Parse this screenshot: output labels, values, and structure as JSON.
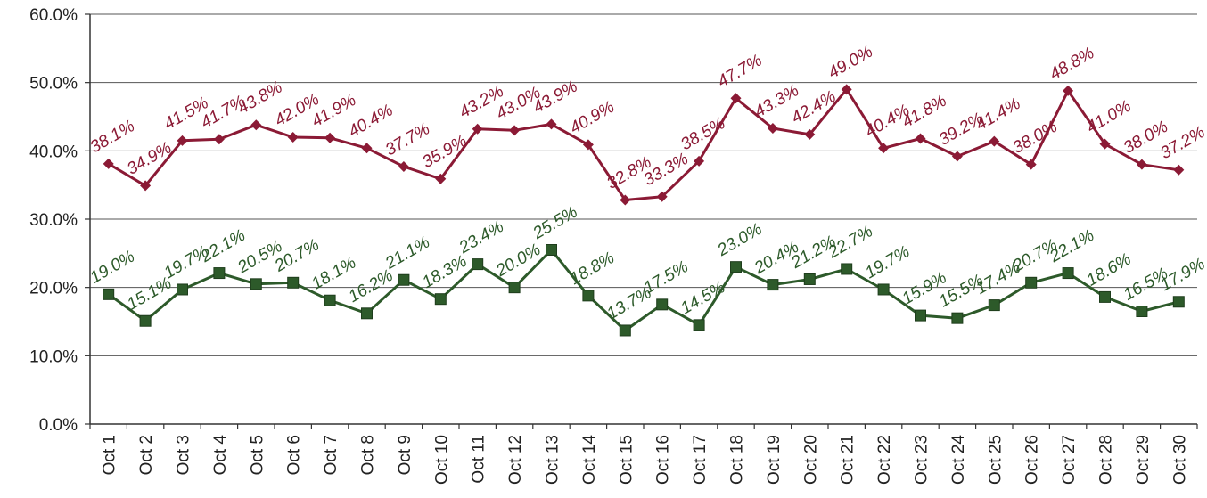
{
  "chart_data": {
    "type": "line",
    "title": "",
    "xlabel": "",
    "ylabel": "",
    "categories": [
      "Oct 1",
      "Oct 2",
      "Oct 3",
      "Oct 4",
      "Oct 5",
      "Oct 6",
      "Oct 7",
      "Oct 8",
      "Oct 9",
      "Oct 10",
      "Oct 11",
      "Oct 12",
      "Oct 13",
      "Oct 14",
      "Oct 15",
      "Oct 16",
      "Oct 17",
      "Oct 18",
      "Oct 19",
      "Oct 20",
      "Oct 21",
      "Oct 22",
      "Oct 23",
      "Oct 24",
      "Oct 25",
      "Oct 26",
      "Oct 27",
      "Oct 28",
      "Oct 29",
      "Oct 30"
    ],
    "y_ticks": [
      "0.0%",
      "10.0%",
      "20.0%",
      "30.0%",
      "40.0%",
      "50.0%",
      "60.0%"
    ],
    "ylim": [
      0,
      60
    ],
    "grid": true,
    "legend": "none",
    "series": [
      {
        "color": "#8b1a35",
        "marker": "diamond",
        "values": [
          38.1,
          34.9,
          41.5,
          41.7,
          43.8,
          42.0,
          41.9,
          40.4,
          37.7,
          35.9,
          43.2,
          43.0,
          43.9,
          40.9,
          32.8,
          33.3,
          38.5,
          47.7,
          43.3,
          42.4,
          49.0,
          40.4,
          41.8,
          39.2,
          41.4,
          38.0,
          48.8,
          41.0,
          38.0,
          37.2
        ],
        "labels": [
          "38.1%",
          "34.9%",
          "41.5%",
          "41.7%",
          "43.8%",
          "42.0%",
          "41.9%",
          "40.4%",
          "37.7%",
          "35.9%",
          "43.2%",
          "43.0%",
          "43.9%",
          "40.9%",
          "32.8%",
          "33.3%",
          "38.5%",
          "47.7%",
          "43.3%",
          "42.4%",
          "49.0%",
          "40.4%",
          "41.8%",
          "39.2%",
          "41.4%",
          "38.0%",
          "48.8%",
          "41.0%",
          "38.0%",
          "37.2%"
        ]
      },
      {
        "color": "#2d5a2a",
        "marker": "square",
        "values": [
          19.0,
          15.1,
          19.7,
          22.1,
          20.5,
          20.7,
          18.1,
          16.2,
          21.1,
          18.3,
          23.4,
          20.0,
          25.5,
          18.8,
          13.7,
          17.5,
          14.5,
          23.0,
          20.4,
          21.2,
          22.7,
          19.7,
          15.9,
          15.5,
          17.4,
          20.7,
          22.1,
          18.6,
          16.5,
          17.9
        ],
        "labels": [
          "19.0%",
          "15.1%",
          "19.7%",
          "22.1%",
          "20.5%",
          "20.7%",
          "18.1%",
          "16.2%",
          "21.1%",
          "18.3%",
          "23.4%",
          "20.0%",
          "25.5%",
          "18.8%",
          "13.7%",
          "17.5%",
          "14.5%",
          "23.0%",
          "20.4%",
          "21.2%",
          "22.7%",
          "19.7%",
          "15.9%",
          "15.5%",
          "17.4%",
          "20.7%",
          "22.1%",
          "18.6%",
          "16.5%",
          "17.9%"
        ]
      }
    ]
  }
}
